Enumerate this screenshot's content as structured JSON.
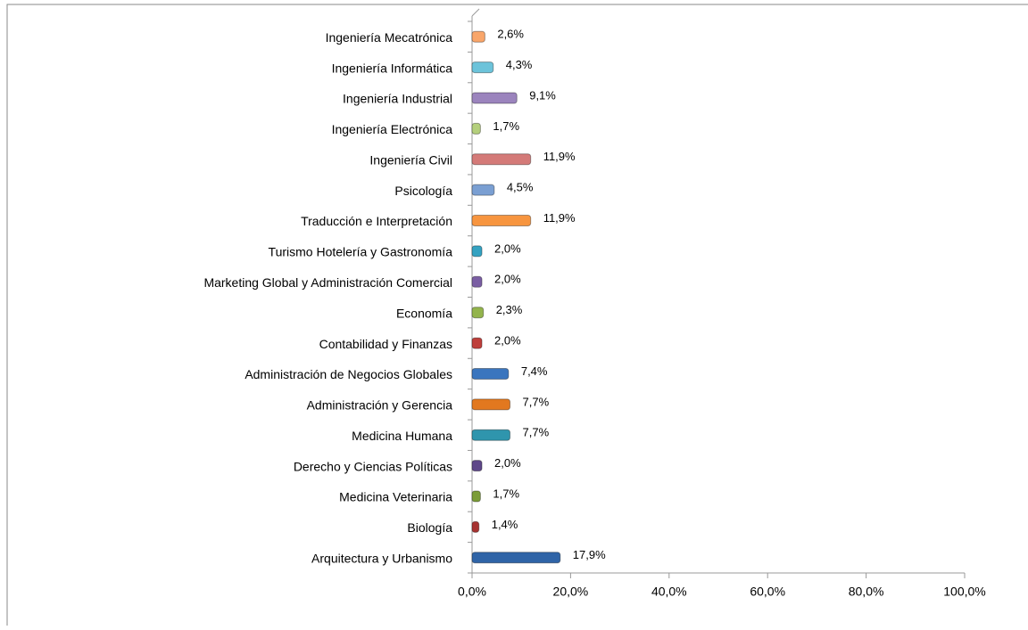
{
  "chart_data": {
    "type": "bar",
    "orientation": "horizontal",
    "categories": [
      "Ingeniería Mecatrónica",
      "Ingeniería Informática",
      "Ingeniería Industrial",
      "Ingeniería Electrónica",
      "Ingeniería Civil",
      "Psicología",
      "Traducción e Interpretación",
      "Turismo Hotelería y Gastronomía",
      "Marketing Global y Administración Comercial",
      "Economía",
      "Contabilidad y Finanzas",
      "Administración de Negocios Globales",
      "Administración y Gerencia",
      "Medicina Humana",
      "Derecho y Ciencias Políticas",
      "Medicina Veterinaria",
      "Biología",
      "Arquitectura y Urbanismo"
    ],
    "values": [
      2.6,
      4.3,
      9.1,
      1.7,
      11.9,
      4.5,
      11.9,
      2.0,
      2.0,
      2.3,
      2.0,
      7.4,
      7.7,
      7.7,
      2.0,
      1.7,
      1.4,
      17.9
    ],
    "value_labels": [
      "2,6%",
      "4,3%",
      "9,1%",
      "1,7%",
      "11,9%",
      "4,5%",
      "11,9%",
      "2,0%",
      "2,0%",
      "2,3%",
      "2,0%",
      "7,4%",
      "7,7%",
      "7,7%",
      "2,0%",
      "1,7%",
      "1,4%",
      "17,9%"
    ],
    "colors": [
      "#f9a66a",
      "#6cc3da",
      "#9b84bd",
      "#b4cf7c",
      "#d47a78",
      "#7a9fd2",
      "#f7953f",
      "#34a2c1",
      "#7a5ea3",
      "#93b44c",
      "#be3f3b",
      "#3a75be",
      "#e2781f",
      "#2f95ad",
      "#5e4789",
      "#7b9c38",
      "#a73331",
      "#2f64a7"
    ],
    "xlim": [
      0,
      100
    ],
    "xticks": [
      {
        "value": 0,
        "label": "0,0%"
      },
      {
        "value": 20,
        "label": "20,0%"
      },
      {
        "value": 40,
        "label": "40,0%"
      },
      {
        "value": 60,
        "label": "60,0%"
      },
      {
        "value": 80,
        "label": "80,0%"
      },
      {
        "value": 100,
        "label": "100,0%"
      }
    ],
    "grid": false
  }
}
